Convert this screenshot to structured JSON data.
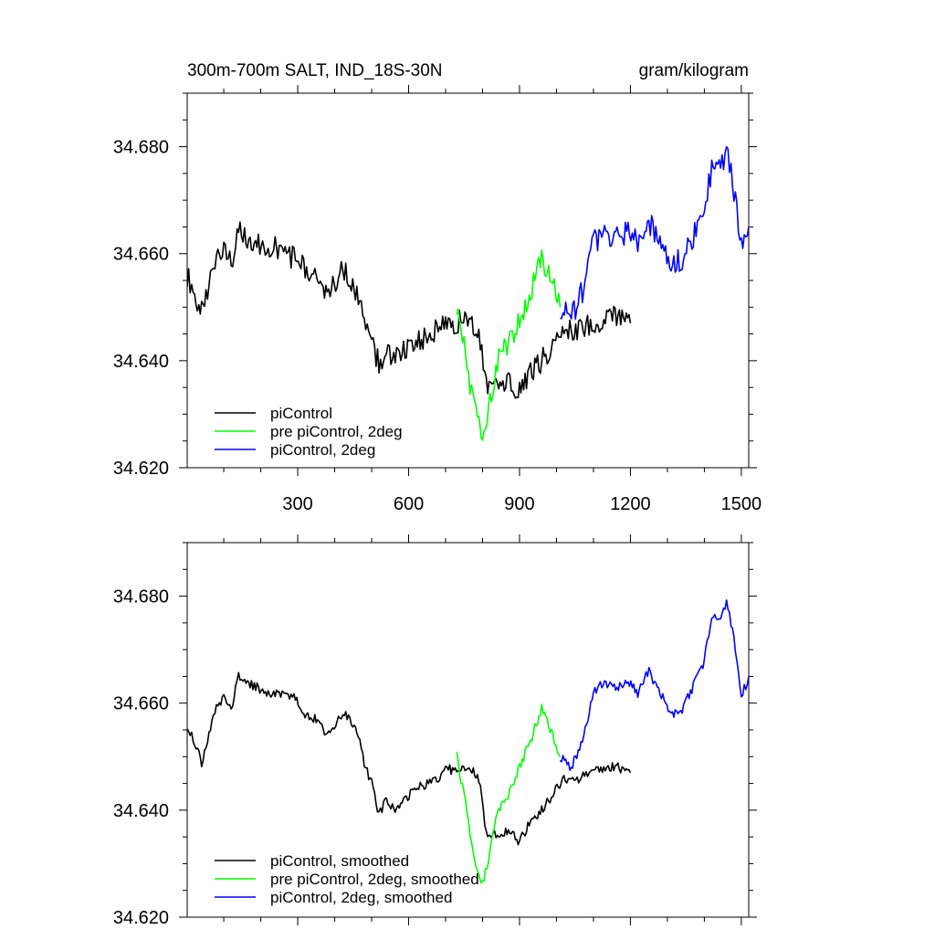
{
  "colors": {
    "piControl": "#000000",
    "pre_piControl_2deg": "#00ff00",
    "piControl_2deg": "#0000ff"
  },
  "chart_data": [
    {
      "type": "line",
      "title_left": "300m-700m SALT, IND_18S-30N",
      "title_right": "gram/kilogram",
      "xlim": [
        1,
        1520
      ],
      "ylim": [
        34.62,
        34.69
      ],
      "x_ticks": [
        300,
        600,
        900,
        1200,
        1500
      ],
      "x_tick_labels": [
        "300",
        "600",
        "900",
        "1200",
        "1500"
      ],
      "y_ticks": [
        34.62,
        34.64,
        34.66,
        34.68
      ],
      "y_tick_labels": [
        "34.620",
        "34.640",
        "34.660",
        "34.680"
      ],
      "legend_position": "bottom-left",
      "series": [
        {
          "name": "piControl",
          "color": "#000000",
          "x": [
            1,
            25,
            40,
            60,
            80,
            100,
            120,
            140,
            160,
            190,
            220,
            250,
            290,
            320,
            350,
            380,
            410,
            430,
            460,
            480,
            500,
            520,
            540,
            560,
            590,
            620,
            650,
            680,
            700,
            730,
            760,
            790,
            810,
            840,
            870,
            900,
            930,
            960,
            990,
            1020,
            1060,
            1100,
            1140,
            1170,
            1200
          ],
          "y": [
            34.656,
            34.652,
            34.649,
            34.654,
            34.659,
            34.661,
            34.658,
            34.664,
            34.663,
            34.662,
            34.661,
            34.661,
            34.659,
            34.657,
            34.656,
            34.652,
            34.656,
            34.657,
            34.653,
            34.648,
            34.644,
            34.639,
            34.642,
            34.64,
            34.642,
            34.643,
            34.645,
            34.646,
            34.648,
            34.647,
            34.648,
            34.646,
            34.636,
            34.635,
            34.636,
            34.634,
            34.638,
            34.64,
            34.643,
            34.646,
            34.646,
            34.647,
            34.648,
            34.648,
            34.647
          ]
        },
        {
          "name": "pre piControl, 2deg",
          "color": "#00ff00",
          "x": [
            730,
            750,
            770,
            790,
            800,
            820,
            840,
            870,
            900,
            930,
            960,
            990,
            1010
          ],
          "y": [
            34.65,
            34.643,
            34.634,
            34.628,
            34.626,
            34.632,
            34.64,
            34.643,
            34.648,
            34.653,
            34.659,
            34.654,
            34.65
          ]
        },
        {
          "name": "piControl, 2deg",
          "color": "#0000ff",
          "x": [
            1010,
            1040,
            1070,
            1100,
            1130,
            1160,
            1190,
            1220,
            1250,
            1280,
            1310,
            1340,
            1370,
            1400,
            1420,
            1440,
            1460,
            1480,
            1500,
            1520
          ],
          "y": [
            34.65,
            34.648,
            34.653,
            34.662,
            34.664,
            34.663,
            34.664,
            34.662,
            34.666,
            34.662,
            34.658,
            34.659,
            34.663,
            34.668,
            34.676,
            34.676,
            34.679,
            34.672,
            34.661,
            34.665
          ]
        }
      ]
    },
    {
      "type": "line",
      "title_left": "",
      "title_right": "",
      "xlim": [
        1,
        1520
      ],
      "ylim": [
        34.62,
        34.69
      ],
      "x_ticks": [
        300,
        600,
        900,
        1200,
        1500
      ],
      "x_tick_labels": [],
      "y_ticks": [
        34.62,
        34.64,
        34.66,
        34.68
      ],
      "y_tick_labels": [
        "34.620",
        "34.640",
        "34.660",
        "34.680"
      ],
      "legend_position": "bottom-left",
      "series": [
        {
          "name": "piControl, smoothed",
          "color": "#000000",
          "x": [
            1,
            25,
            40,
            60,
            80,
            100,
            120,
            140,
            160,
            190,
            220,
            250,
            290,
            320,
            350,
            380,
            410,
            430,
            460,
            480,
            500,
            520,
            540,
            560,
            590,
            620,
            650,
            680,
            700,
            730,
            760,
            790,
            810,
            840,
            870,
            900,
            930,
            960,
            990,
            1020,
            1060,
            1100,
            1140,
            1170,
            1200
          ],
          "y": [
            34.656,
            34.652,
            34.649,
            34.654,
            34.659,
            34.661,
            34.659,
            34.665,
            34.664,
            34.663,
            34.662,
            34.662,
            34.661,
            34.658,
            34.657,
            34.654,
            34.657,
            34.658,
            34.655,
            34.649,
            34.645,
            34.639,
            34.642,
            34.64,
            34.642,
            34.644,
            34.645,
            34.646,
            34.648,
            34.647,
            34.648,
            34.646,
            34.636,
            34.635,
            34.636,
            34.634,
            34.638,
            34.64,
            34.643,
            34.646,
            34.646,
            34.647,
            34.648,
            34.648,
            34.647
          ]
        },
        {
          "name": "pre piControl, 2deg, smoothed",
          "color": "#00ff00",
          "x": [
            730,
            750,
            770,
            790,
            800,
            820,
            840,
            870,
            900,
            930,
            960,
            990,
            1010
          ],
          "y": [
            34.65,
            34.643,
            34.634,
            34.628,
            34.626,
            34.632,
            34.64,
            34.643,
            34.648,
            34.653,
            34.659,
            34.654,
            34.65
          ]
        },
        {
          "name": "piControl, 2deg, smoothed",
          "color": "#0000ff",
          "x": [
            1010,
            1040,
            1070,
            1100,
            1130,
            1160,
            1190,
            1220,
            1250,
            1280,
            1310,
            1340,
            1370,
            1400,
            1420,
            1440,
            1460,
            1480,
            1500,
            1520
          ],
          "y": [
            34.65,
            34.648,
            34.653,
            34.662,
            34.664,
            34.663,
            34.664,
            34.662,
            34.666,
            34.662,
            34.658,
            34.659,
            34.663,
            34.668,
            34.676,
            34.676,
            34.679,
            34.672,
            34.661,
            34.665
          ]
        }
      ]
    }
  ]
}
